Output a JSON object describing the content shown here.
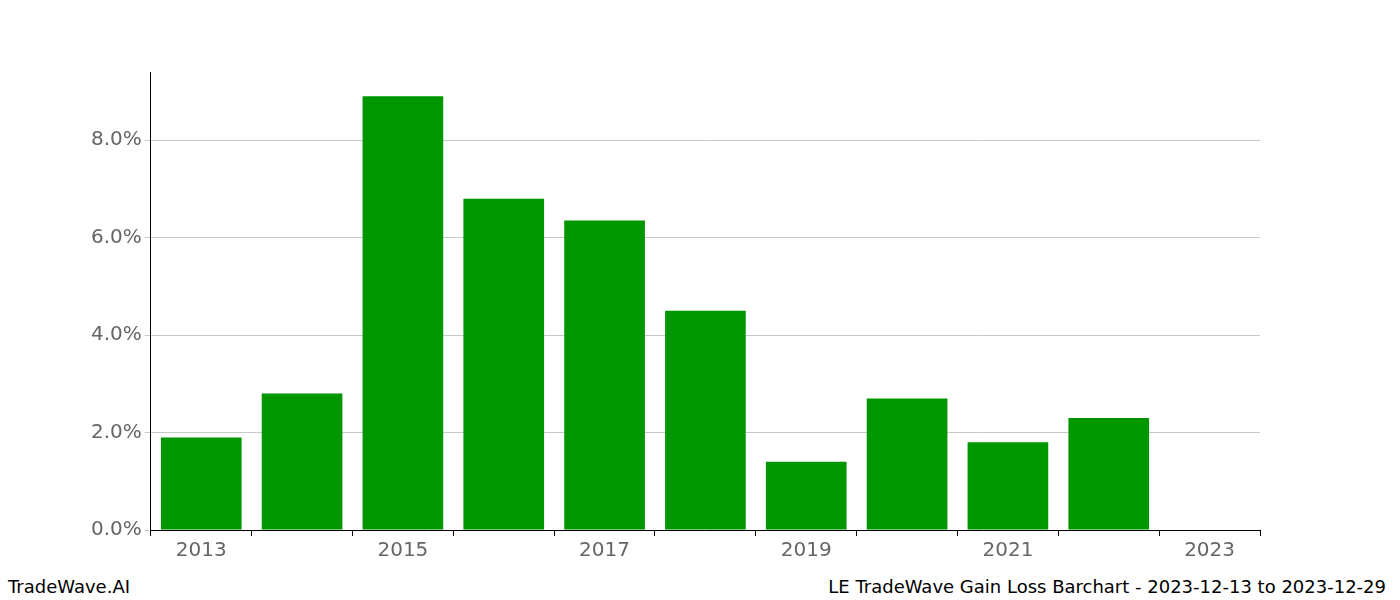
{
  "chart_data": {
    "type": "bar",
    "categories": [
      "2013",
      null,
      "2015",
      null,
      "2017",
      null,
      "2019",
      null,
      "2021",
      null,
      "2023"
    ],
    "values": [
      1.9,
      2.8,
      8.9,
      6.8,
      6.35,
      4.5,
      1.4,
      2.7,
      1.8,
      2.3,
      null
    ],
    "color": "#009600",
    "ylim": [
      0,
      9.4
    ],
    "yticks": [
      {
        "value": 0,
        "label": "0.0%"
      },
      {
        "value": 2,
        "label": "2.0%"
      },
      {
        "value": 4,
        "label": "4.0%"
      },
      {
        "value": 6,
        "label": "6.0%"
      },
      {
        "value": 8,
        "label": "8.0%"
      }
    ],
    "grid": true,
    "footer": {
      "left": "TradeWave.AI",
      "right": "LE TradeWave Gain Loss Barchart - 2023-12-13 to 2023-12-29"
    }
  }
}
